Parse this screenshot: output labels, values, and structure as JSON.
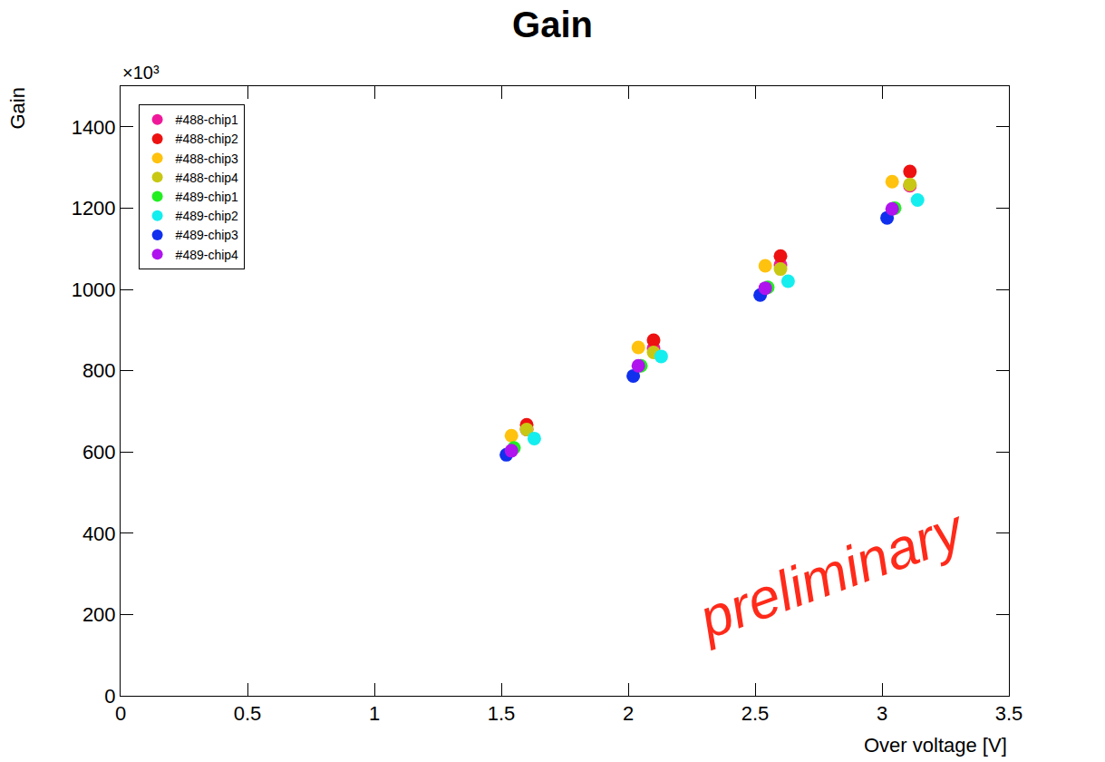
{
  "chart_data": {
    "type": "scatter",
    "title": "Gain",
    "x_label": "Over voltage [V]",
    "y_label": "Gain",
    "annotations": [
      "×10³",
      "preliminary"
    ],
    "xlim": [
      0,
      3.5
    ],
    "xticks": [
      0,
      0.5,
      1,
      1.5,
      2,
      2.5,
      3,
      3.5
    ],
    "ylim": [
      0,
      1500
    ],
    "yticks": [
      0,
      200,
      400,
      600,
      800,
      1000,
      1200,
      1400
    ],
    "grid": false,
    "legend": "top left",
    "marker": "circle",
    "series": [
      {
        "name": "#488-chip1",
        "color": "#f0189a",
        "x": [
          1.6,
          2.1,
          2.6,
          3.11
        ],
        "values": [
          655,
          855,
          1060,
          1255
        ]
      },
      {
        "name": "#488-chip2",
        "color": "#ee1111",
        "x": [
          1.6,
          2.1,
          2.6,
          3.11
        ],
        "values": [
          667,
          875,
          1082,
          1290
        ]
      },
      {
        "name": "#488-chip3",
        "color": "#ffc20e",
        "x": [
          1.54,
          2.04,
          2.54,
          3.04
        ],
        "values": [
          640,
          857,
          1058,
          1265
        ]
      },
      {
        "name": "#488-chip4",
        "color": "#c8c814",
        "x": [
          1.6,
          2.1,
          2.6,
          3.11
        ],
        "values": [
          655,
          845,
          1050,
          1258
        ]
      },
      {
        "name": "#489-chip1",
        "color": "#22ee22",
        "x": [
          1.55,
          2.05,
          2.55,
          3.05
        ],
        "values": [
          610,
          812,
          1005,
          1200
        ]
      },
      {
        "name": "#489-chip2",
        "color": "#14eeee",
        "x": [
          1.63,
          2.13,
          2.63,
          3.14
        ],
        "values": [
          633,
          835,
          1020,
          1220
        ]
      },
      {
        "name": "#489-chip3",
        "color": "#1030ee",
        "x": [
          1.52,
          2.02,
          2.52,
          3.02
        ],
        "values": [
          593,
          787,
          986,
          1176
        ]
      },
      {
        "name": "#489-chip4",
        "color": "#b014ee",
        "x": [
          1.54,
          2.04,
          2.54,
          3.04
        ],
        "values": [
          603,
          812,
          1003,
          1198
        ]
      }
    ]
  }
}
